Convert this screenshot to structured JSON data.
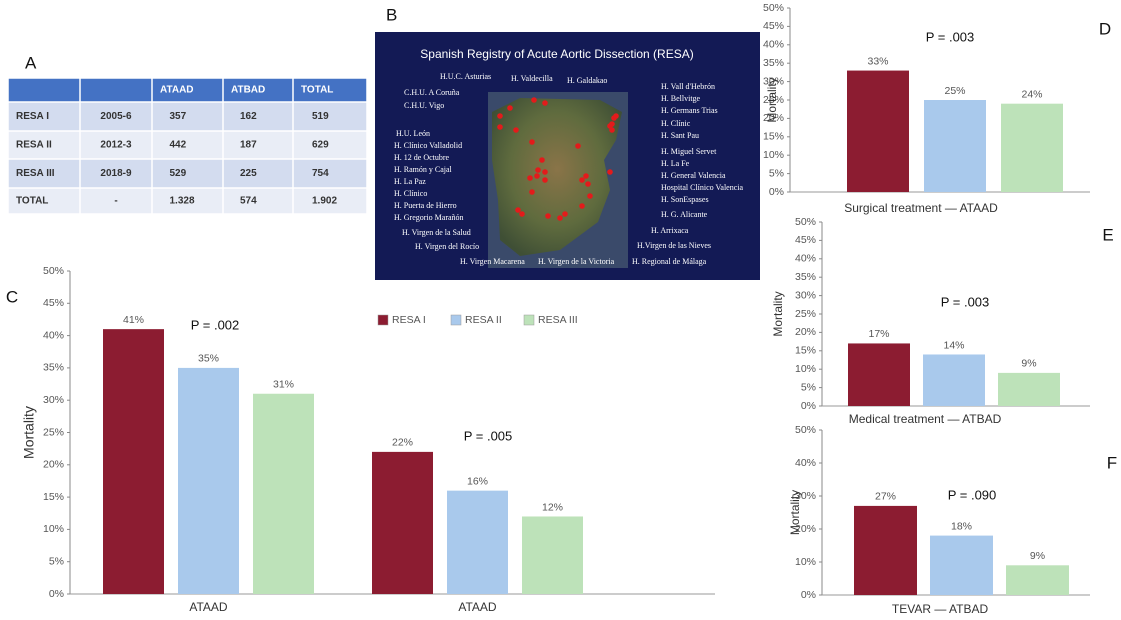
{
  "table": {
    "panel": "A",
    "header": [
      null,
      null,
      "ATAAD",
      "ATBAD",
      "TOTAL"
    ],
    "rows": [
      [
        "RESA I",
        "2005-6",
        "357",
        "162",
        "519"
      ],
      [
        "RESA II",
        "2012-3",
        "442",
        "187",
        "629"
      ],
      [
        "RESA III",
        "2018-9",
        "529",
        "225",
        "754"
      ],
      [
        "TOTAL",
        "-",
        "1.328",
        "574",
        "1.902"
      ]
    ]
  },
  "map": {
    "panel": "B",
    "title": "Spanish Registry of Acute Aortic Dissection (RESA)",
    "labels": [
      "H.U.C. Asturias",
      "H. Valdecilla",
      "H. Galdakao",
      "C.H.U. A Coruña",
      "C.H.U. Vigo",
      "H.U. León",
      "H. Clínico Valladolid",
      "H. 12 de Octubre",
      "H. Ramón y Cajal",
      "H. La Paz",
      "H. Clínico",
      "H. Puerta de Hierro",
      "H. Gregorio Marañón",
      "H. Virgen de la Salud",
      "H. Virgen del Rocío",
      "H. Virgen Macarena",
      "H. Virgen de la Victoria",
      "H. Regional de Málaga",
      "H. Vall d'Hebrón",
      "H. Bellvitge",
      "H. Germans Trias",
      "H. Clínic",
      "H. Sant Pau",
      "H. Miguel Servet",
      "H. La Fe",
      "H. General Valencia",
      "Hospital Clínico Valencia",
      "H. SonEspases",
      "H. G. Alicante",
      "H. Arrixaca",
      "H.Virgen de las Nieves"
    ]
  },
  "chart_data": [
    {
      "type": "bar",
      "panel": "C",
      "y_label": "Mortality",
      "categories": [
        "ATAAD",
        "ATAAD"
      ],
      "series": [
        {
          "name": "RESA I",
          "color": "#8c1c31",
          "values": [
            41,
            22
          ],
          "value_labels": [
            "41%",
            "22%"
          ]
        },
        {
          "name": "RESA II",
          "color": "#a9c9ec",
          "values": [
            35,
            16
          ],
          "value_labels": [
            "35%",
            "16%"
          ]
        },
        {
          "name": "RESA III",
          "color": "#bde2b9",
          "values": [
            31,
            12
          ],
          "value_labels": [
            "31%",
            "12%"
          ]
        }
      ],
      "annotations": [
        "P = .002",
        "P = .005"
      ],
      "ylim": [
        0,
        50
      ],
      "yticks": [
        {
          "value": 0,
          "label": "0%"
        },
        {
          "value": 5,
          "label": "5%"
        },
        {
          "value": 10,
          "label": "10%"
        },
        {
          "value": 15,
          "label": "15%"
        },
        {
          "value": 20,
          "label": "20%"
        },
        {
          "value": 25,
          "label": "25%"
        },
        {
          "value": 30,
          "label": "30%"
        },
        {
          "value": 35,
          "label": "35%"
        },
        {
          "value": 40,
          "label": "40%"
        },
        {
          "value": 45,
          "label": "45%"
        },
        {
          "value": 50,
          "label": "50%"
        }
      ]
    },
    {
      "type": "bar",
      "panel": "D",
      "y_label": "Mortality",
      "x_label": "Surgical treatment — ATAAD",
      "categories": [
        null,
        null,
        null
      ],
      "values": [
        33,
        25,
        24
      ],
      "value_labels": [
        "33%",
        "25%",
        "24%"
      ],
      "colors": [
        "#8c1c31",
        "#a9c9ec",
        "#bde2b9"
      ],
      "annotations": [
        "P = .003"
      ],
      "ylim": [
        0,
        50
      ],
      "yticks": [
        {
          "value": 0,
          "label": "0%"
        },
        {
          "value": 5,
          "label": "5%"
        },
        {
          "value": 10,
          "label": "10%"
        },
        {
          "value": 15,
          "label": "15%"
        },
        {
          "value": 20,
          "label": "20%"
        },
        {
          "value": 25,
          "label": "25%"
        },
        {
          "value": 30,
          "label": "30%"
        },
        {
          "value": 35,
          "label": "35%"
        },
        {
          "value": 40,
          "label": "40%"
        },
        {
          "value": 45,
          "label": "45%"
        },
        {
          "value": 50,
          "label": "50%"
        }
      ]
    },
    {
      "type": "bar",
      "panel": "E",
      "y_label": "Mortality",
      "x_label": "Medical treatment — ATBAD",
      "categories": [
        null,
        null,
        null
      ],
      "values": [
        17,
        14,
        9
      ],
      "value_labels": [
        "17%",
        "14%",
        "9%"
      ],
      "colors": [
        "#8c1c31",
        "#a9c9ec",
        "#bde2b9"
      ],
      "annotations": [
        "P = .003"
      ],
      "ylim": [
        0,
        50
      ],
      "yticks": [
        {
          "value": 0,
          "label": "0%"
        },
        {
          "value": 5,
          "label": "5%"
        },
        {
          "value": 10,
          "label": "10%"
        },
        {
          "value": 15,
          "label": "15%"
        },
        {
          "value": 20,
          "label": "20%"
        },
        {
          "value": 25,
          "label": "25%"
        },
        {
          "value": 30,
          "label": "30%"
        },
        {
          "value": 35,
          "label": "35%"
        },
        {
          "value": 40,
          "label": "40%"
        },
        {
          "value": 45,
          "label": "45%"
        },
        {
          "value": 50,
          "label": "50%"
        }
      ]
    },
    {
      "type": "bar",
      "panel": "F",
      "y_label": "Mortality",
      "x_label": "TEVAR  — ATBAD",
      "categories": [
        null,
        null,
        null
      ],
      "values": [
        27,
        18,
        9
      ],
      "value_labels": [
        "27%",
        "18%",
        "9%"
      ],
      "colors": [
        "#8c1c31",
        "#a9c9ec",
        "#bde2b9"
      ],
      "annotations": [
        "P = .090"
      ],
      "ylim": [
        0,
        50
      ],
      "yticks": [
        {
          "value": 0,
          "label": "0%"
        },
        {
          "value": 10,
          "label": "10%"
        },
        {
          "value": 20,
          "label": "20%"
        },
        {
          "value": 30,
          "label": "30%"
        },
        {
          "value": 40,
          "label": "40%"
        },
        {
          "value": 50,
          "label": "50%"
        }
      ]
    }
  ]
}
